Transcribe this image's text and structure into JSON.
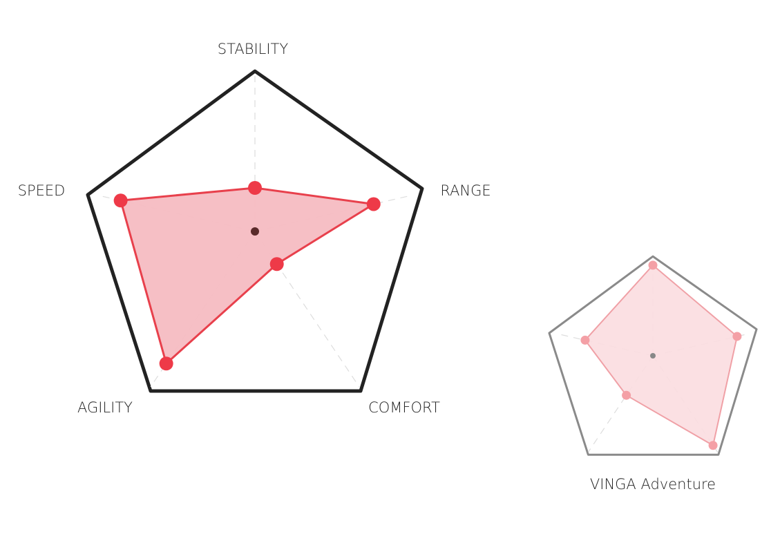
{
  "chart_data": [
    {
      "type": "radar",
      "categories": [
        "STABILITY",
        "RANGE",
        "COMFORT",
        "AGILITY",
        "SPEED"
      ],
      "values": [
        28,
        76,
        21,
        85,
        86
      ],
      "ylim": [
        0,
        100
      ],
      "color": "#ee3a48"
    },
    {
      "type": "radar",
      "title": "VINGA Adventure",
      "values": [
        94,
        87,
        93,
        41,
        70
      ],
      "ylim": [
        0,
        100
      ],
      "color": "#f4a0a6"
    }
  ]
}
